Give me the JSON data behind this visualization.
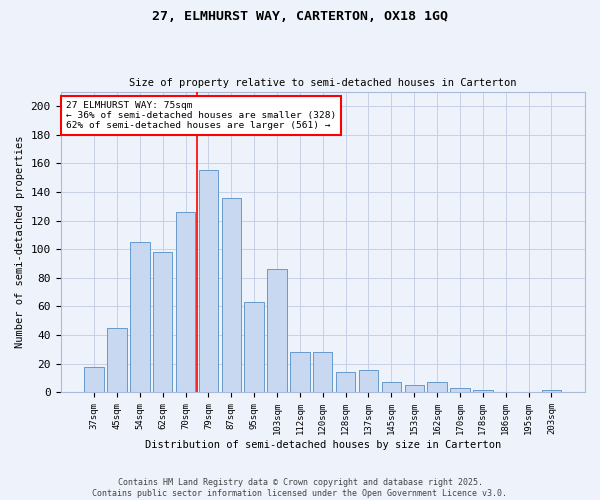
{
  "title1": "27, ELMHURST WAY, CARTERTON, OX18 1GQ",
  "title2": "Size of property relative to semi-detached houses in Carterton",
  "xlabel": "Distribution of semi-detached houses by size in Carterton",
  "ylabel": "Number of semi-detached properties",
  "categories": [
    "37sqm",
    "45sqm",
    "54sqm",
    "62sqm",
    "70sqm",
    "79sqm",
    "87sqm",
    "95sqm",
    "103sqm",
    "112sqm",
    "120sqm",
    "128sqm",
    "137sqm",
    "145sqm",
    "153sqm",
    "162sqm",
    "170sqm",
    "178sqm",
    "186sqm",
    "195sqm",
    "203sqm"
  ],
  "values": [
    18,
    45,
    105,
    98,
    126,
    155,
    136,
    63,
    86,
    28,
    28,
    14,
    16,
    7,
    5,
    7,
    3,
    2,
    0,
    0,
    2
  ],
  "bar_color": "#c8d8f0",
  "bar_edge_color": "#6699cc",
  "vline_x": 4.5,
  "vline_color": "red",
  "annotation_text": "27 ELMHURST WAY: 75sqm\n← 36% of semi-detached houses are smaller (328)\n62% of semi-detached houses are larger (561) →",
  "annotation_box_color": "white",
  "annotation_box_edge": "red",
  "footer1": "Contains HM Land Registry data © Crown copyright and database right 2025.",
  "footer2": "Contains public sector information licensed under the Open Government Licence v3.0.",
  "bg_color": "#eef2fa",
  "grid_color": "#c8d0e8",
  "ylim": [
    0,
    210
  ],
  "yticks": [
    0,
    20,
    40,
    60,
    80,
    100,
    120,
    140,
    160,
    180,
    200
  ]
}
